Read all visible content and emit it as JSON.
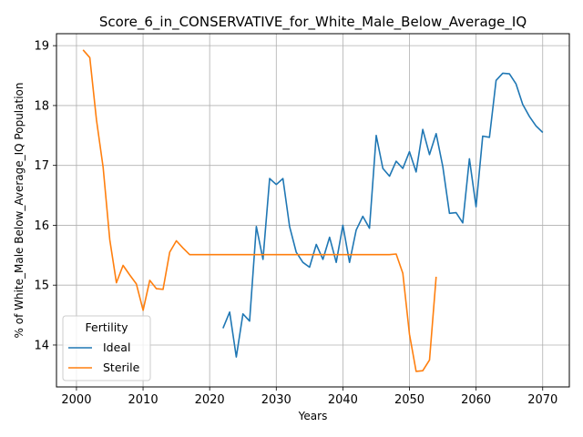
{
  "chart_data": {
    "type": "line",
    "title": "Score_6_in_CONSERVATIVE_for_White_Male_Below_Average_IQ",
    "xlabel": "Years",
    "ylabel": "% of White_Male Below_Average_IQ Population",
    "xlim": [
      1997,
      2074
    ],
    "ylim": [
      13.3,
      19.2
    ],
    "xticks": [
      2000,
      2010,
      2020,
      2030,
      2040,
      2050,
      2060,
      2070
    ],
    "yticks": [
      14,
      15,
      16,
      17,
      18,
      19
    ],
    "grid": true,
    "legend": {
      "title": "Fertility",
      "placement": "lower-left"
    },
    "series": [
      {
        "name": "Ideal",
        "color": "#1f77b4",
        "x": [
          2022,
          2023,
          2024,
          2025,
          2026,
          2027,
          2028,
          2029,
          2030,
          2031,
          2032,
          2033,
          2034,
          2035,
          2036,
          2037,
          2038,
          2039,
          2040,
          2041,
          2042,
          2043,
          2044,
          2045,
          2046,
          2047,
          2048,
          2049,
          2050,
          2051,
          2052,
          2053,
          2054,
          2055,
          2056,
          2057,
          2058,
          2059,
          2060,
          2061,
          2062,
          2063,
          2064,
          2065,
          2066,
          2067,
          2068,
          2069,
          2070
        ],
        "y": [
          14.28,
          14.55,
          13.8,
          14.52,
          14.4,
          15.98,
          15.43,
          16.78,
          16.68,
          16.78,
          15.98,
          15.55,
          15.38,
          15.3,
          15.68,
          15.43,
          15.8,
          15.38,
          16.0,
          15.38,
          15.92,
          16.15,
          15.95,
          17.5,
          16.95,
          16.82,
          17.07,
          16.95,
          17.23,
          16.89,
          17.6,
          17.18,
          17.53,
          16.98,
          16.2,
          16.21,
          16.04,
          17.11,
          16.31,
          17.49,
          17.47,
          18.42,
          18.54,
          18.53,
          18.36,
          18.02,
          17.82,
          17.66,
          17.55
        ]
      },
      {
        "name": "Sterile",
        "color": "#ff7f0e",
        "x": [
          2001,
          2002,
          2003,
          2004,
          2005,
          2006,
          2007,
          2008,
          2009,
          2010,
          2011,
          2012,
          2013,
          2014,
          2015,
          2016,
          2017,
          2018,
          2019,
          2020,
          2021,
          2022,
          2023,
          2024,
          2025,
          2026,
          2027,
          2028,
          2029,
          2030,
          2031,
          2032,
          2033,
          2034,
          2035,
          2036,
          2037,
          2038,
          2039,
          2040,
          2041,
          2042,
          2043,
          2044,
          2045,
          2046,
          2047,
          2048,
          2049,
          2050,
          2051,
          2052,
          2053,
          2054
        ],
        "y": [
          18.93,
          18.8,
          17.76,
          16.97,
          15.76,
          15.04,
          15.33,
          15.17,
          15.02,
          14.58,
          15.08,
          14.94,
          14.93,
          15.55,
          15.74,
          15.62,
          15.51,
          15.51,
          15.51,
          15.51,
          15.51,
          15.51,
          15.51,
          15.51,
          15.51,
          15.51,
          15.51,
          15.51,
          15.51,
          15.51,
          15.51,
          15.51,
          15.51,
          15.51,
          15.51,
          15.51,
          15.51,
          15.51,
          15.51,
          15.51,
          15.51,
          15.51,
          15.51,
          15.51,
          15.51,
          15.51,
          15.51,
          15.52,
          15.2,
          14.18,
          13.56,
          13.57,
          13.75,
          15.14
        ]
      }
    ]
  }
}
